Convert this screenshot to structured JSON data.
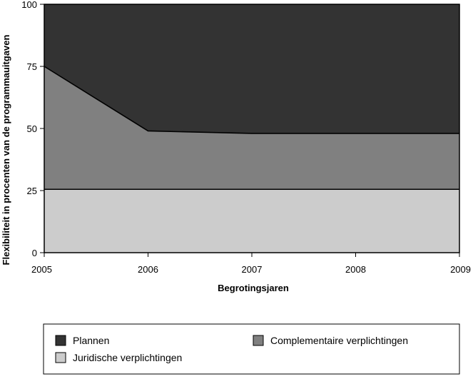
{
  "chart_data": {
    "type": "area",
    "stacked": true,
    "title": "",
    "xlabel": "Begrotingsjaren",
    "ylabel": "Flexibiliteit in procenten van de programmauitgaven",
    "x": [
      "2005",
      "2006",
      "2007",
      "2008",
      "2009"
    ],
    "ylim": [
      0,
      100
    ],
    "yticks": [
      "0",
      "25",
      "50",
      "75",
      "100"
    ],
    "grid": false,
    "legend_position": "bottom",
    "series": [
      {
        "name": "Juridische verplichtingen",
        "values": [
          25.5,
          25.5,
          25.5,
          25.5,
          25.5
        ],
        "color": "#cccccc"
      },
      {
        "name": "Complementaire verplichtingen",
        "values": [
          49.5,
          23.5,
          22.5,
          22.5,
          22.5
        ],
        "color": "#808080"
      },
      {
        "name": "Plannen",
        "values": [
          25,
          51,
          52,
          52,
          52
        ],
        "color": "#333333"
      }
    ],
    "legend_order": [
      "Plannen",
      "Complementaire verplichtingen",
      "Juridische verplichtingen"
    ]
  }
}
